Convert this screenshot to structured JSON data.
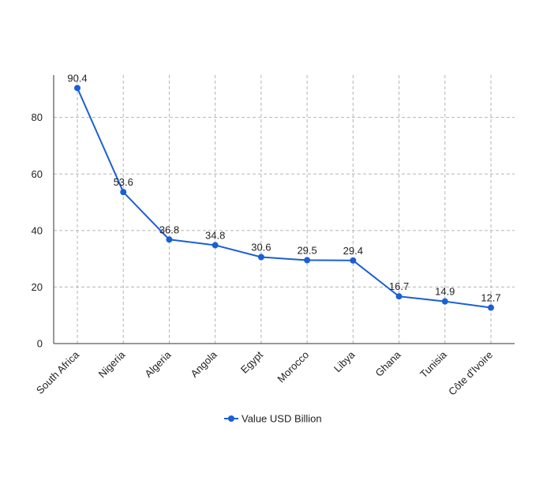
{
  "chart_data": {
    "type": "line",
    "title": "",
    "xlabel": "",
    "ylabel": "",
    "categories": [
      "South Africa",
      "Nigeria",
      "Algeria",
      "Angola",
      "Egypt",
      "Morocco",
      "Libya",
      "Ghana",
      "Tunisia",
      "Côte d'Ivoire"
    ],
    "series": [
      {
        "name": "Value USD Billion",
        "values": [
          90.4,
          53.6,
          36.8,
          34.8,
          30.6,
          29.5,
          29.4,
          16.7,
          14.9,
          12.7
        ],
        "color": "#1a5fd6"
      }
    ],
    "data_labels": [
      "90.4",
      "53.6",
      "36.8",
      "34.8",
      "30.6",
      "29.5",
      "29.4",
      "16.7",
      "14.9",
      "12.7"
    ],
    "ylim": [
      0,
      95
    ],
    "yticks": [
      0,
      20,
      40,
      60,
      80
    ],
    "ytick_labels": [
      "0",
      "20",
      "40",
      "60",
      "80"
    ],
    "grid": true,
    "legend_position": "bottom-center"
  }
}
